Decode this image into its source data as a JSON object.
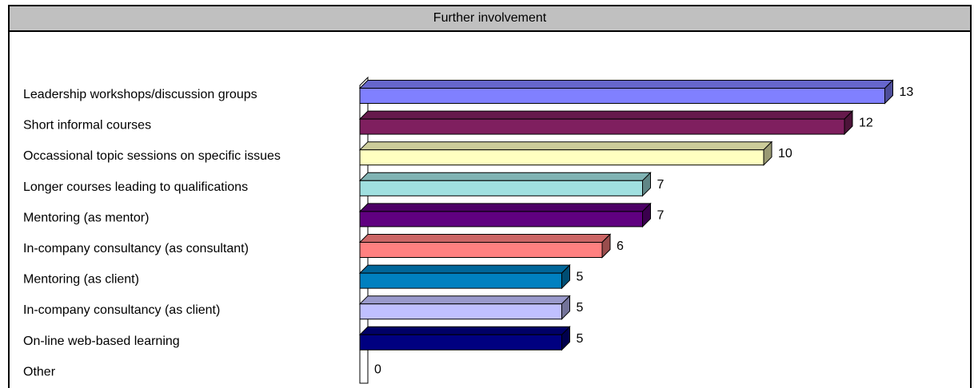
{
  "chart_data": {
    "type": "bar",
    "orientation": "horizontal",
    "title": "Further involvement",
    "categories": [
      "Leadership workshops/discussion groups",
      "Short informal courses",
      "Occassional topic sessions on specific issues",
      "Longer courses leading to qualifications",
      "Mentoring (as mentor)",
      "In-company consultancy (as consultant)",
      "Mentoring (as client)",
      "In-company consultancy (as client)",
      "On-line web-based learning",
      "Other"
    ],
    "values": [
      13,
      12,
      10,
      7,
      7,
      6,
      5,
      5,
      5,
      0
    ],
    "colors": [
      "#8080ff",
      "#7f1f5f",
      "#ffffc0",
      "#a0e0e0",
      "#600080",
      "#ff8080",
      "#0080c0",
      "#c0c0ff",
      "#000080",
      "#ffffff"
    ],
    "data_labels": true,
    "grid": false,
    "legend": "none"
  }
}
